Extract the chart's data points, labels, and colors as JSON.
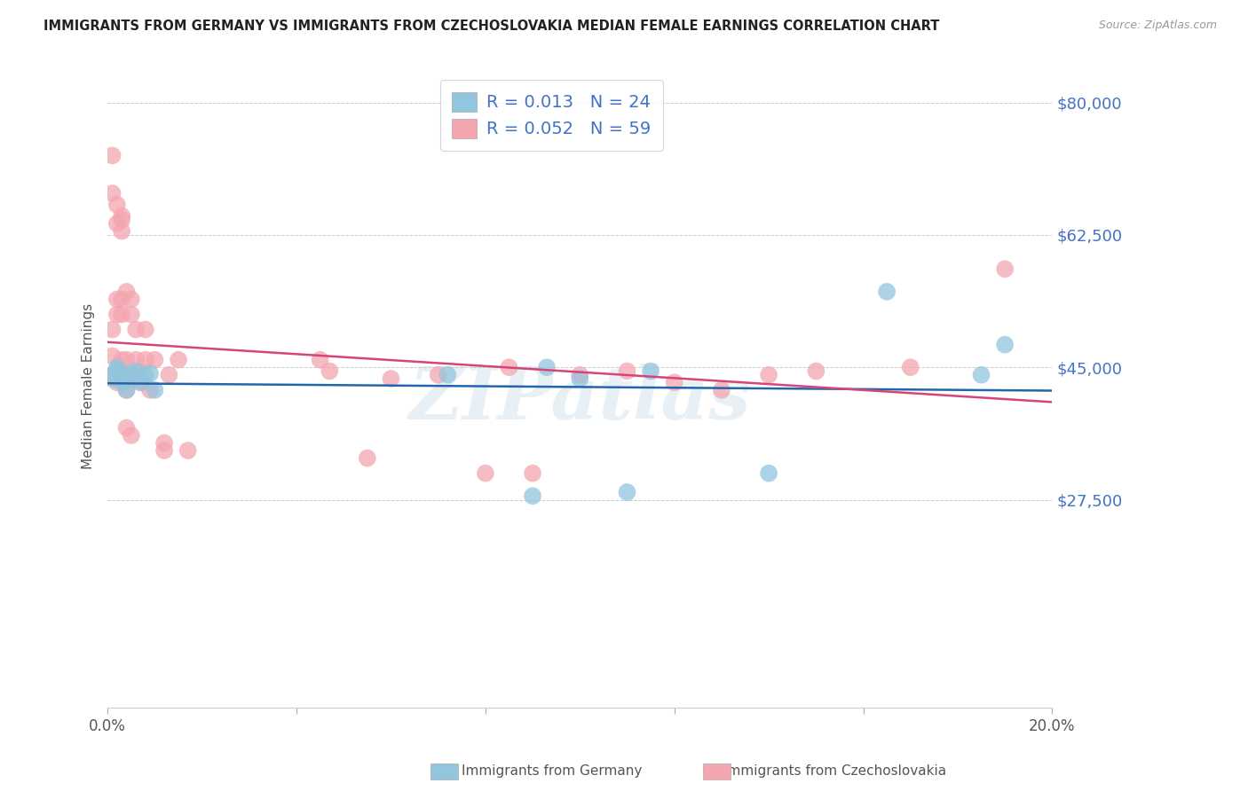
{
  "title": "IMMIGRANTS FROM GERMANY VS IMMIGRANTS FROM CZECHOSLOVAKIA MEDIAN FEMALE EARNINGS CORRELATION CHART",
  "source": "Source: ZipAtlas.com",
  "ylabel": "Median Female Earnings",
  "xlim": [
    0.0,
    0.2
  ],
  "ylim": [
    0,
    85000
  ],
  "yticks": [
    0,
    27500,
    45000,
    62500,
    80000
  ],
  "ytick_labels": [
    "",
    "$27,500",
    "$45,000",
    "$62,500",
    "$80,000"
  ],
  "xticks": [
    0.0,
    0.04,
    0.08,
    0.12,
    0.16,
    0.2
  ],
  "xtick_labels": [
    "0.0%",
    "",
    "",
    "",
    "",
    "20.0%"
  ],
  "germany_R": 0.013,
  "germany_N": 24,
  "czech_R": 0.052,
  "czech_N": 59,
  "germany_color": "#92c5de",
  "czech_color": "#f4a6b0",
  "germany_line_color": "#2166ac",
  "czech_line_color": "#d6457a",
  "watermark": "ZIPatlas",
  "legend_label_germany": "Immigrants from Germany",
  "legend_label_czech": "Immigrants from Czechoslovakia",
  "germany_x": [
    0.001,
    0.001,
    0.002,
    0.002,
    0.003,
    0.003,
    0.004,
    0.004,
    0.005,
    0.006,
    0.007,
    0.008,
    0.009,
    0.01,
    0.072,
    0.09,
    0.093,
    0.1,
    0.11,
    0.115,
    0.14,
    0.165,
    0.185,
    0.19
  ],
  "germany_y": [
    43500,
    44000,
    44500,
    45000,
    44000,
    43000,
    42000,
    43500,
    44200,
    44500,
    43000,
    44000,
    44200,
    42000,
    44000,
    28000,
    45000,
    43500,
    28500,
    44500,
    31000,
    55000,
    44000,
    48000
  ],
  "czech_x": [
    0.001,
    0.001,
    0.001,
    0.001,
    0.001,
    0.002,
    0.002,
    0.002,
    0.002,
    0.002,
    0.002,
    0.003,
    0.003,
    0.003,
    0.003,
    0.003,
    0.003,
    0.003,
    0.003,
    0.004,
    0.004,
    0.004,
    0.004,
    0.004,
    0.004,
    0.005,
    0.005,
    0.005,
    0.005,
    0.006,
    0.006,
    0.006,
    0.007,
    0.007,
    0.008,
    0.008,
    0.009,
    0.01,
    0.012,
    0.012,
    0.013,
    0.015,
    0.017,
    0.045,
    0.047,
    0.055,
    0.06,
    0.07,
    0.08,
    0.085,
    0.09,
    0.1,
    0.11,
    0.12,
    0.13,
    0.14,
    0.15,
    0.17,
    0.19
  ],
  "czech_y": [
    44000,
    46500,
    50000,
    68000,
    73000,
    43000,
    64000,
    66500,
    52000,
    54000,
    44500,
    63000,
    65000,
    64500,
    52000,
    54000,
    44000,
    46000,
    43500,
    55000,
    44000,
    43500,
    46000,
    42000,
    37000,
    54000,
    52000,
    44000,
    36000,
    43500,
    46000,
    50000,
    43000,
    44500,
    46000,
    50000,
    42000,
    46000,
    34000,
    35000,
    44000,
    46000,
    34000,
    46000,
    44500,
    33000,
    43500,
    44000,
    31000,
    45000,
    31000,
    44000,
    44500,
    43000,
    42000,
    44000,
    44500,
    45000,
    58000
  ]
}
